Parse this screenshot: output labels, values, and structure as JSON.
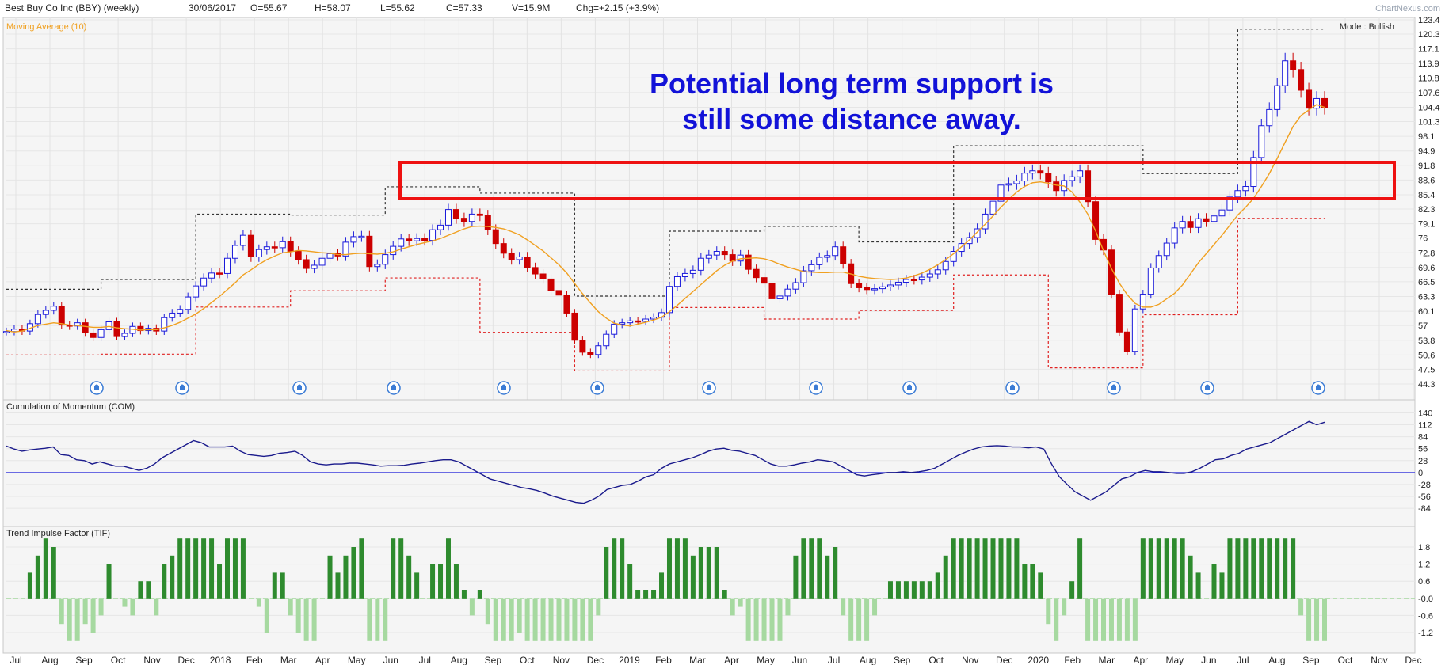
{
  "header": {
    "title": "Best Buy Co Inc (BBY) (weekly)",
    "date": "30/06/2017",
    "open": "O=55.67",
    "high": "H=58.07",
    "low": "L=55.62",
    "close": "C=57.33",
    "volume": "V=15.9M",
    "change": "Chg=+2.15 (+3.9%)"
  },
  "watermark": "ChartNexus.com",
  "mode": "Mode : Bullish",
  "colors": {
    "up": "#1a1adb",
    "down": "#cc0000",
    "ma": "#f0a020",
    "stop_upper": "#333333",
    "stop_lower": "#e02020",
    "com": "#1a1a8c",
    "tif_pos": "#2e8b2e",
    "tif_neg": "#a6d9a0",
    "box": "#ee1111",
    "annotation": "#1212d8"
  },
  "annotation": {
    "line1": "Potential long term support is",
    "line2": "still some distance away."
  },
  "x_months": [
    "Jul",
    "Aug",
    "Sep",
    "Oct",
    "Nov",
    "Dec",
    "2018",
    "Feb",
    "Mar",
    "Apr",
    "May",
    "Jun",
    "Jul",
    "Aug",
    "Sep",
    "Oct",
    "Nov",
    "Dec",
    "2019",
    "Feb",
    "Mar",
    "Apr",
    "May",
    "Jun",
    "Jul",
    "Aug",
    "Sep",
    "Oct",
    "Nov",
    "Dec",
    "2020",
    "Feb",
    "Mar",
    "Apr",
    "May",
    "Jun",
    "Jul",
    "Aug",
    "Sep",
    "Oct",
    "Nov",
    "Dec"
  ],
  "chart_data": [
    {
      "type": "candlestick",
      "title": "Best Buy Co Inc (BBY) (weekly)",
      "indicator_label": "Moving Average (10)",
      "y_ticks": [
        "123.4",
        "120.3",
        "117.1",
        "113.9",
        "110.8",
        "107.6",
        "104.4",
        "101.3",
        "98.1",
        "94.9",
        "91.8",
        "88.6",
        "85.4",
        "82.3",
        "79.1",
        "76",
        "72.8",
        "69.6",
        "66.5",
        "63.3",
        "60.1",
        "57",
        "53.8",
        "50.6",
        "47.5",
        "44.3"
      ],
      "ylim": [
        44.3,
        123.4
      ],
      "closes": [
        55.7,
        56.2,
        55.8,
        57.4,
        59.4,
        60.3,
        61.2,
        57.1,
        56.9,
        57.6,
        55.4,
        54.4,
        56.1,
        57.8,
        54.6,
        55.3,
        56.8,
        55.9,
        56.4,
        55.8,
        58.7,
        59.7,
        60.5,
        63.2,
        65.6,
        67.3,
        68.4,
        68.3,
        71.6,
        74.4,
        76.6,
        71.9,
        73.5,
        74.1,
        73.9,
        75.2,
        73.1,
        71.3,
        69.4,
        70.1,
        71.6,
        72.6,
        72.1,
        75.1,
        76.3,
        76.4,
        69.8,
        70.3,
        72.4,
        74.2,
        75.8,
        75.4,
        75.9,
        75.5,
        77.8,
        78.8,
        82.2,
        80.3,
        79.6,
        81.2,
        80.9,
        77.8,
        74.8,
        72.7,
        71.3,
        71.9,
        69.6,
        68.2,
        67.1,
        64.6,
        63.6,
        59.7,
        53.8,
        51.2,
        50.7,
        52.6,
        55.1,
        57.3,
        57.6,
        58.0,
        57.9,
        58.4,
        58.8,
        59.8,
        65.5,
        67.6,
        68.3,
        69.0,
        71.6,
        72.3,
        73.1,
        72.4,
        71.0,
        72.3,
        69.2,
        67.4,
        66.2,
        62.8,
        63.4,
        64.9,
        66.3,
        68.9,
        70.2,
        71.8,
        72.2,
        74.1,
        70.4,
        66.1,
        65.2,
        64.8,
        65.0,
        65.4,
        65.8,
        66.4,
        67.0,
        66.9,
        67.5,
        68.2,
        69.1,
        70.9,
        73.1,
        74.8,
        76.1,
        78.0,
        81.2,
        84.0,
        87.5,
        87.8,
        88.4,
        90.1,
        90.6,
        90.1,
        88.2,
        86.3,
        88.5,
        89.3,
        90.6,
        83.9,
        75.7,
        73.4,
        63.8,
        55.6,
        51.4,
        60.6,
        63.8,
        69.5,
        72.2,
        74.9,
        78.2,
        79.6,
        78.3,
        80.2,
        79.6,
        80.8,
        82.1,
        84.9,
        86.3,
        87.2,
        93.5,
        100.4,
        103.9,
        109.1,
        114.5,
        112.6,
        108.1,
        104.2,
        106.3,
        104.4
      ],
      "ma10": [
        55.9,
        55.6,
        55.8,
        56.4,
        57.0,
        57.3,
        57.6,
        57.4,
        57.1,
        57.0,
        56.8,
        56.6,
        56.6,
        56.8,
        56.5,
        56.3,
        56.2,
        56.0,
        56.1,
        56.1,
        56.5,
        57.0,
        57.7,
        58.6,
        59.5,
        60.7,
        62.0,
        63.3,
        64.8,
        66.3,
        68.0,
        69.1,
        70.3,
        71.3,
        72.1,
        72.8,
        73.0,
        73.3,
        73.2,
        73.0,
        72.8,
        72.7,
        72.4,
        72.4,
        72.6,
        72.7,
        72.6,
        72.5,
        72.7,
        73.0,
        73.6,
        74.1,
        74.6,
        75.0,
        75.4,
        75.9,
        76.6,
        77.3,
        78.0,
        78.5,
        78.6,
        78.5,
        78.3,
        78.0,
        77.4,
        76.7,
        75.6,
        74.4,
        73.2,
        71.7,
        70.2,
        68.4,
        66.1,
        63.9,
        61.9,
        60.0,
        58.6,
        57.5,
        57.1,
        56.9,
        57.3,
        57.7,
        58.2,
        58.8,
        60.0,
        61.4,
        62.9,
        64.4,
        65.9,
        67.4,
        68.9,
        70.1,
        71.0,
        71.5,
        71.6,
        71.7,
        71.5,
        71.0,
        70.3,
        69.7,
        69.2,
        68.7,
        68.6,
        68.5,
        68.5,
        68.6,
        68.6,
        68.2,
        67.7,
        67.4,
        67.2,
        67.1,
        67.0,
        67.1,
        67.3,
        67.8,
        68.4,
        69.2,
        70.2,
        71.3,
        72.6,
        74.1,
        75.6,
        77.3,
        79.0,
        80.8,
        82.7,
        84.4,
        86.0,
        87.2,
        88.0,
        88.2,
        87.9,
        87.5,
        87.3,
        86.0,
        83.8,
        81.2,
        77.5,
        73.2,
        69.4,
        66.2,
        63.7,
        61.8,
        61.0,
        61.0,
        61.6,
        62.8,
        64.0,
        65.8,
        68.2,
        70.6,
        72.6,
        74.6,
        76.6,
        78.8,
        81.0,
        82.7,
        84.6,
        87.2,
        90.0,
        93.3,
        96.8,
        100.2,
        102.6,
        103.8,
        105.0,
        104.4
      ],
      "com_label": "Cumulation of Momentum (COM)",
      "com_ticks": [
        "140",
        "112",
        "84",
        "56",
        "28",
        "0",
        "-28",
        "-56",
        "-84"
      ],
      "tif_label": "Trend Impulse Factor (TIF)",
      "tif_ticks": [
        "1.8",
        "1.2",
        "0.6",
        "-0.0",
        "-0.6",
        "-1.2"
      ],
      "com_values": [
        62,
        55,
        50,
        53,
        55,
        57,
        60,
        42,
        40,
        30,
        28,
        20,
        25,
        20,
        15,
        15,
        10,
        5,
        10,
        20,
        35,
        45,
        55,
        65,
        75,
        70,
        60,
        60,
        60,
        62,
        50,
        42,
        40,
        38,
        40,
        45,
        47,
        50,
        40,
        25,
        20,
        18,
        20,
        20,
        22,
        22,
        20,
        18,
        15,
        16,
        16,
        17,
        20,
        22,
        25,
        28,
        30,
        30,
        25,
        15,
        5,
        -5,
        -15,
        -20,
        -25,
        -30,
        -35,
        -38,
        -42,
        -48,
        -55,
        -60,
        -65,
        -70,
        -72,
        -65,
        -55,
        -40,
        -35,
        -30,
        -28,
        -20,
        -10,
        -5,
        10,
        20,
        25,
        30,
        35,
        42,
        50,
        55,
        57,
        52,
        50,
        45,
        40,
        30,
        20,
        15,
        15,
        18,
        22,
        25,
        30,
        28,
        25,
        15,
        5,
        -5,
        -8,
        -5,
        -3,
        0,
        0,
        2,
        0,
        2,
        5,
        10,
        20,
        30,
        40,
        48,
        55,
        60,
        62,
        63,
        62,
        60,
        60,
        58,
        60,
        55,
        20,
        -10,
        -28,
        -45,
        -55,
        -65,
        -55,
        -45,
        -30,
        -15,
        -10,
        0,
        5,
        2,
        2,
        0,
        -2,
        -2,
        2,
        10,
        20,
        30,
        32,
        40,
        45,
        55,
        60,
        65,
        70,
        80,
        90,
        100,
        110,
        120,
        112,
        118
      ]
    }
  ]
}
